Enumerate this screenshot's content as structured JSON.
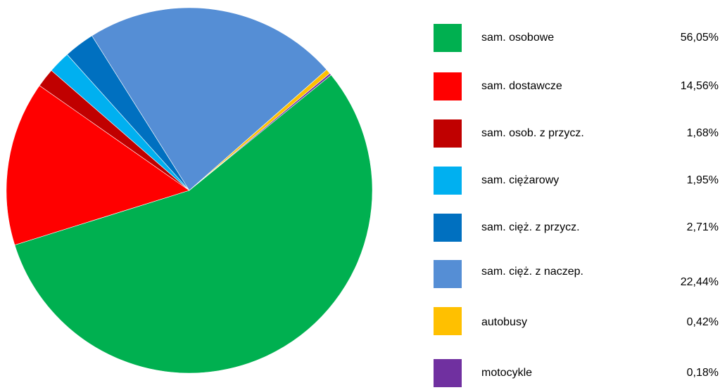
{
  "chart_data": {
    "type": "pie",
    "title": "",
    "legend_position": "right",
    "slices": [
      {
        "label": "sam. osobowe",
        "value_text": "56,05%",
        "value": 56.05,
        "color": "#00B050"
      },
      {
        "label": "sam. dostawcze",
        "value_text": "14,56%",
        "value": 14.56,
        "color": "#FF0000"
      },
      {
        "label": "sam. osob. z przycz.",
        "value_text": "1,68%",
        "value": 1.68,
        "color": "#C00000"
      },
      {
        "label": "sam. ciężarowy",
        "value_text": "1,95%",
        "value": 1.95,
        "color": "#00B0F0"
      },
      {
        "label": "sam. cięż. z przycz.",
        "value_text": "2,71%",
        "value": 2.71,
        "color": "#0070C0"
      },
      {
        "label": "sam. cięż. z naczep.",
        "value_text": "22,44%",
        "value": 22.44,
        "color": "#558ED5"
      },
      {
        "label": "autobusy",
        "value_text": "0,42%",
        "value": 0.42,
        "color": "#FFC000"
      },
      {
        "label": "motocykle",
        "value_text": "0,18%",
        "value": 0.18,
        "color": "#7030A0"
      }
    ]
  }
}
